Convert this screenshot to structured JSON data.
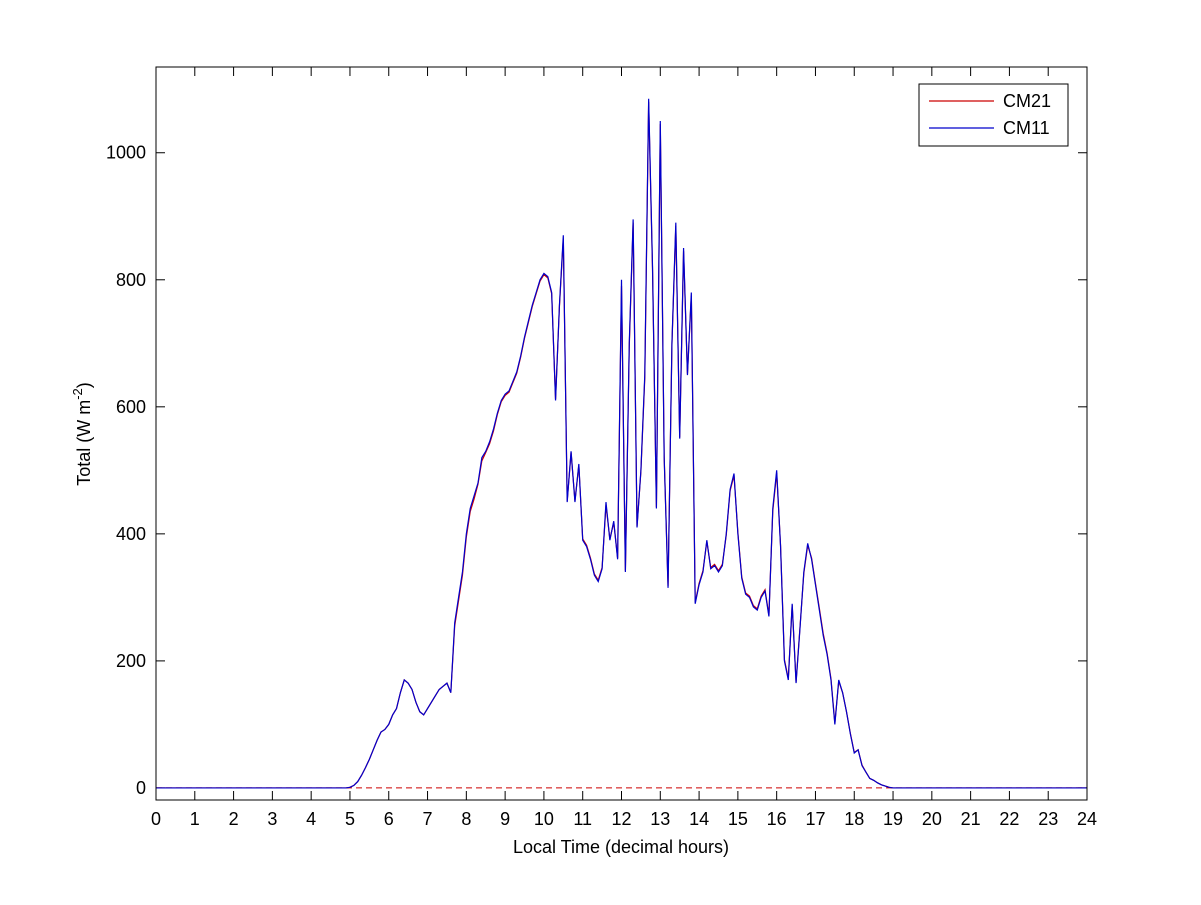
{
  "chart_data": {
    "type": "line",
    "x_label": "Local Time (decimal hours)",
    "y_label": {
      "text": "Total (W m",
      "superscript": "-2",
      "suffix": ")"
    },
    "x": [
      0,
      4.8,
      4.9,
      5,
      5.1,
      5.2,
      5.3,
      5.4,
      5.5,
      5.6,
      5.7,
      5.8,
      5.9,
      6,
      6.1,
      6.2,
      6.3,
      6.4,
      6.5,
      6.6,
      6.7,
      6.8,
      6.9,
      7,
      7.1,
      7.2,
      7.3,
      7.4,
      7.5,
      7.6,
      7.7,
      7.8,
      7.9,
      8,
      8.1,
      8.2,
      8.3,
      8.4,
      8.5,
      8.6,
      8.7,
      8.8,
      8.9,
      9,
      9.1,
      9.2,
      9.3,
      9.4,
      9.5,
      9.6,
      9.7,
      9.8,
      9.9,
      10,
      10.1,
      10.2,
      10.3,
      10.4,
      10.5,
      10.6,
      10.7,
      10.8,
      10.9,
      11,
      11.1,
      11.2,
      11.3,
      11.4,
      11.5,
      11.6,
      11.7,
      11.8,
      11.9,
      12,
      12.1,
      12.2,
      12.3,
      12.4,
      12.5,
      12.6,
      12.7,
      12.8,
      12.9,
      13,
      13.1,
      13.2,
      13.3,
      13.4,
      13.5,
      13.6,
      13.7,
      13.8,
      13.9,
      14,
      14.1,
      14.2,
      14.3,
      14.4,
      14.5,
      14.6,
      14.7,
      14.8,
      14.9,
      15,
      15.1,
      15.2,
      15.3,
      15.4,
      15.5,
      15.6,
      15.7,
      15.8,
      15.9,
      16,
      16.1,
      16.2,
      16.3,
      16.4,
      16.5,
      16.6,
      16.7,
      16.8,
      16.9,
      17,
      17.1,
      17.2,
      17.3,
      17.4,
      17.5,
      17.6,
      17.7,
      17.8,
      17.9,
      18,
      18.1,
      18.2,
      18.3,
      18.4,
      18.5,
      18.6,
      18.7,
      18.8,
      18.9,
      19,
      19.1,
      19.2,
      24
    ],
    "series": [
      {
        "name": "CM21",
        "color": "#cc0000",
        "values": [
          0,
          0,
          0,
          1,
          4,
          10,
          20,
          32,
          45,
          60,
          75,
          88,
          92,
          100,
          115,
          125,
          150,
          170,
          165,
          155,
          135,
          120,
          115,
          125,
          135,
          145,
          155,
          160,
          165,
          150,
          255,
          295,
          335,
          395,
          435,
          455,
          478,
          515,
          528,
          542,
          562,
          588,
          608,
          618,
          623,
          638,
          653,
          678,
          708,
          733,
          758,
          778,
          798,
          808,
          803,
          778,
          612,
          758,
          865,
          452,
          528,
          452,
          508,
          392,
          382,
          362,
          337,
          327,
          347,
          445,
          392,
          418,
          362,
          790,
          342,
          695,
          890,
          412,
          498,
          645,
          1080,
          815,
          442,
          1045,
          522,
          318,
          698,
          885,
          552,
          845,
          652,
          775,
          292,
          322,
          342,
          388,
          347,
          352,
          342,
          352,
          398,
          468,
          492,
          402,
          332,
          307,
          302,
          287,
          282,
          302,
          312,
          272,
          436,
          496,
          382,
          202,
          172,
          288,
          167,
          252,
          338,
          382,
          362,
          322,
          283,
          243,
          212,
          172,
          102,
          168,
          150,
          120,
          86,
          56,
          60,
          36,
          25,
          15,
          12,
          8,
          5,
          3,
          1,
          0,
          0,
          0,
          0
        ]
      },
      {
        "name": "CM11",
        "color": "#0000cc",
        "values": [
          0,
          0,
          0,
          1,
          4,
          10,
          20,
          32,
          45,
          60,
          75,
          88,
          92,
          100,
          115,
          125,
          150,
          170,
          165,
          155,
          135,
          120,
          115,
          125,
          135,
          145,
          155,
          160,
          165,
          150,
          260,
          300,
          340,
          400,
          440,
          460,
          480,
          520,
          530,
          545,
          565,
          590,
          610,
          620,
          625,
          640,
          655,
          680,
          710,
          735,
          760,
          780,
          800,
          810,
          805,
          780,
          610,
          760,
          870,
          450,
          530,
          450,
          510,
          390,
          380,
          360,
          335,
          325,
          345,
          450,
          390,
          420,
          360,
          800,
          340,
          700,
          895,
          410,
          500,
          650,
          1085,
          820,
          440,
          1050,
          520,
          315,
          700,
          890,
          550,
          850,
          650,
          780,
          290,
          320,
          340,
          390,
          345,
          350,
          340,
          350,
          400,
          470,
          495,
          400,
          330,
          305,
          300,
          285,
          280,
          300,
          310,
          270,
          440,
          500,
          380,
          200,
          170,
          290,
          165,
          250,
          340,
          385,
          360,
          320,
          280,
          240,
          210,
          170,
          100,
          170,
          150,
          120,
          85,
          55,
          60,
          35,
          25,
          15,
          12,
          8,
          5,
          3,
          1,
          0,
          0,
          0,
          0
        ]
      }
    ],
    "zero_line": {
      "y": 0,
      "color": "#cc0000"
    },
    "xlim": [
      0,
      24
    ],
    "ylim": [
      -19,
      1135
    ],
    "xticks": [
      0,
      1,
      2,
      3,
      4,
      5,
      6,
      7,
      8,
      9,
      10,
      11,
      12,
      13,
      14,
      15,
      16,
      17,
      18,
      19,
      20,
      21,
      22,
      23,
      24
    ],
    "yticks": [
      0,
      200,
      400,
      600,
      800,
      1000
    ],
    "legend": "upper right"
  }
}
